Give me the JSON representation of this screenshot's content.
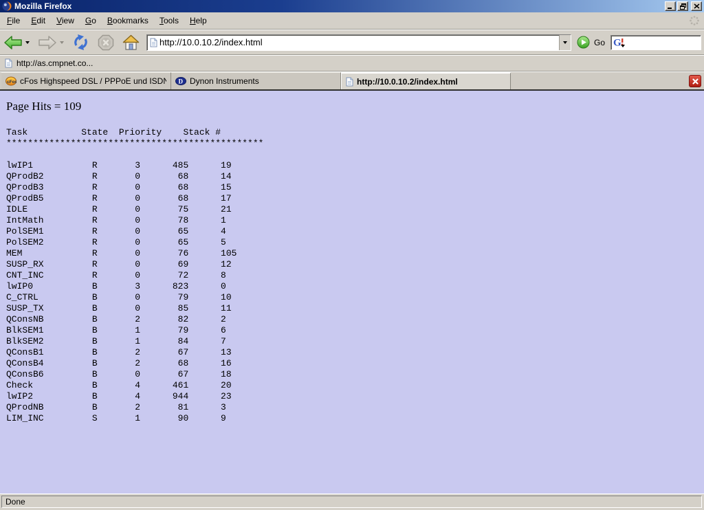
{
  "window": {
    "title": "Mozilla Firefox"
  },
  "menu": {
    "items": [
      {
        "label": "File",
        "underline": 0
      },
      {
        "label": "Edit",
        "underline": 0
      },
      {
        "label": "View",
        "underline": 0
      },
      {
        "label": "Go",
        "underline": 0
      },
      {
        "label": "Bookmarks",
        "underline": 0
      },
      {
        "label": "Tools",
        "underline": 0
      },
      {
        "label": "Help",
        "underline": 0
      }
    ]
  },
  "toolbar": {
    "url_value": "http://10.0.10.2/index.html",
    "go_label": "Go",
    "search_value": "",
    "icons": {
      "back": "green-left-arrow",
      "forward": "gray-right-arrow-disabled",
      "reload": "blue-circular-arrows",
      "stop": "gray-octagon-x-disabled",
      "home": "house",
      "url_page": "document-page",
      "go": "green-circle-play",
      "search_engine": "google-g"
    }
  },
  "bookmarks_bar": {
    "items": [
      {
        "label": "http://as.cmpnet.co..."
      }
    ]
  },
  "tabs": [
    {
      "label": "cFos Highspeed DSL / PPPoE und ISDN CAP...",
      "icon": "cfos-icon",
      "active": false
    },
    {
      "label": "Dynon Instruments",
      "icon": "dynon-icon",
      "active": false
    },
    {
      "label": "http://10.0.10.2/index.html",
      "icon": "page-icon",
      "active": true
    }
  ],
  "content": {
    "page_hits": "Page Hits = 109",
    "table": {
      "columns": [
        "Task",
        "State",
        "Priority",
        "Stack",
        "#"
      ],
      "separator_char": "*",
      "separator_length": 48,
      "rows": [
        [
          "lwIP1",
          "R",
          "3",
          "485",
          "19"
        ],
        [
          "QProdB2",
          "R",
          "0",
          "68",
          "14"
        ],
        [
          "QProdB3",
          "R",
          "0",
          "68",
          "15"
        ],
        [
          "QProdB5",
          "R",
          "0",
          "68",
          "17"
        ],
        [
          "IDLE",
          "R",
          "0",
          "75",
          "21"
        ],
        [
          "IntMath",
          "R",
          "0",
          "78",
          "1"
        ],
        [
          "PolSEM1",
          "R",
          "0",
          "65",
          "4"
        ],
        [
          "PolSEM2",
          "R",
          "0",
          "65",
          "5"
        ],
        [
          "MEM",
          "R",
          "0",
          "76",
          "105"
        ],
        [
          "SUSP_RX",
          "R",
          "0",
          "69",
          "12"
        ],
        [
          "CNT_INC",
          "R",
          "0",
          "72",
          "8"
        ],
        [
          "lwIP0",
          "B",
          "3",
          "823",
          "0"
        ],
        [
          "C_CTRL",
          "B",
          "0",
          "79",
          "10"
        ],
        [
          "SUSP_TX",
          "B",
          "0",
          "85",
          "11"
        ],
        [
          "QConsNB",
          "B",
          "2",
          "82",
          "2"
        ],
        [
          "BlkSEM1",
          "B",
          "1",
          "79",
          "6"
        ],
        [
          "BlkSEM2",
          "B",
          "1",
          "84",
          "7"
        ],
        [
          "QConsB1",
          "B",
          "2",
          "67",
          "13"
        ],
        [
          "QConsB4",
          "B",
          "2",
          "68",
          "16"
        ],
        [
          "QConsB6",
          "B",
          "0",
          "67",
          "18"
        ],
        [
          "Check",
          "B",
          "4",
          "461",
          "20"
        ],
        [
          "lwIP2",
          "B",
          "4",
          "944",
          "23"
        ],
        [
          "QProdNB",
          "B",
          "2",
          "81",
          "3"
        ],
        [
          "LIM_INC",
          "S",
          "1",
          "90",
          "9"
        ]
      ]
    }
  },
  "status": {
    "text": "Done"
  },
  "colors": {
    "content_bg": "#c9c9f0",
    "chrome_bg": "#d4d0c8",
    "title_gradient_start": "#0a246a",
    "title_gradient_end": "#a6caf0",
    "tab_close_red": "#b01e12",
    "back_arrow_green": "#49b32a"
  }
}
